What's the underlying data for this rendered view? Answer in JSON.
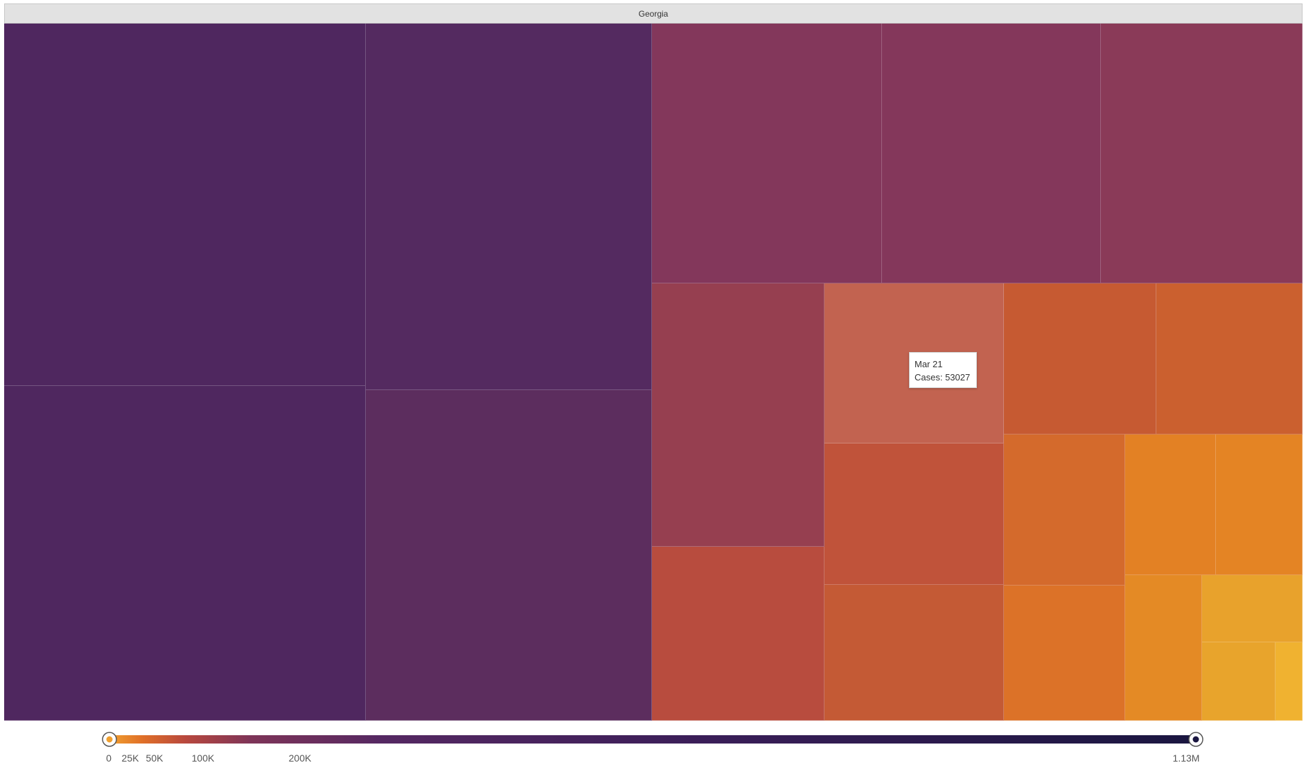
{
  "header": {
    "title": "Georgia"
  },
  "tooltip": {
    "date": "Mar 21",
    "cases": "Cases: 53027"
  },
  "chart_data": {
    "type": "heatmap",
    "title": "Georgia",
    "color_scale": {
      "min_label": "0",
      "max_label": "1.13M",
      "tick_labels": [
        "0",
        "25K",
        "50K",
        "100K",
        "200K",
        "1.13M"
      ],
      "tick_values": [
        0,
        25000,
        50000,
        100000,
        200000,
        1130000
      ],
      "colors": [
        "#f0b030",
        "#e07020",
        "#c0503a",
        "#8a3a58",
        "#5a2a60",
        "#1a1640"
      ]
    },
    "hover": {
      "label": "Mar 21",
      "cases": 53027
    }
  },
  "tiles": [
    {
      "color": "#4f275f"
    },
    {
      "color": "#4f275f"
    },
    {
      "color": "#542a60"
    },
    {
      "color": "#5c2d5e"
    },
    {
      "color": "#83375b"
    },
    {
      "color": "#84375b"
    },
    {
      "color": "#8a3a58"
    },
    {
      "color": "#963f50"
    },
    {
      "color": "#b84c3e"
    },
    {
      "color": "#c26350"
    },
    {
      "color": "#c0533a"
    },
    {
      "color": "#c45a35"
    },
    {
      "color": "#c65a32"
    },
    {
      "color": "#cb602f"
    },
    {
      "color": "#d46a2c"
    },
    {
      "color": "#dc7228"
    },
    {
      "color": "#e38124"
    },
    {
      "color": "#e48424"
    },
    {
      "color": "#e48a25"
    },
    {
      "color": "#e8a22c"
    },
    {
      "color": "#e8a42c"
    },
    {
      "color": "#f0b230"
    }
  ]
}
